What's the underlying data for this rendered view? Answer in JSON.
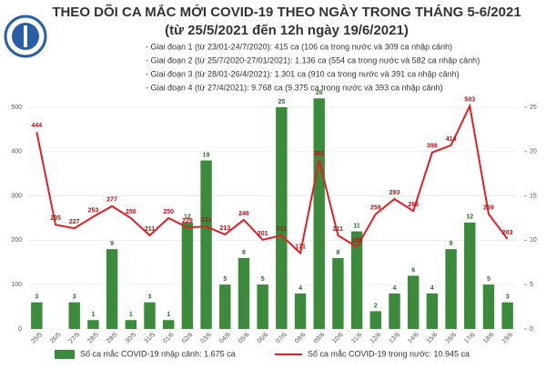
{
  "chart_data": {
    "type": "bar_line",
    "title": "THEO DÕI CA MẮC MỚI COVID-19 THEO NGÀY TRONG THÁNG 5-6/2021",
    "subtitle": "(từ 25/5/2021 đến 12h ngày 19/6/2021)",
    "notes": [
      "- Giai đoạn 1 (từ 23/01-24/7/2020): 415 ca (106 ca trong nước và 309 ca nhập cảnh)",
      "- Giai đoạn 2 (từ 25/7/2020-27/01/2021): 1.136 ca (554 ca trong nước và 582 ca nhập cảnh)",
      "- Giai đoạn 3 (từ 28/01-26/4/2021): 1.301 ca (910 ca trong nước và 391 ca nhập cảnh)",
      "- Giai đoạn 4 (từ 27/4/2021): 9.768 ca (9.375 ca trong nước và 393 ca nhập cảnh)"
    ],
    "categories": [
      "25/5",
      "26/5",
      "27/5",
      "28/5",
      "29/5",
      "30/5",
      "31/5",
      "01/6",
      "02/6",
      "03/6",
      "04/6",
      "05/6",
      "06/6",
      "07/6",
      "08/6",
      "09/6",
      "10/6",
      "11/6",
      "12/6",
      "13/6",
      "14/6",
      "15/6",
      "16/6",
      "17/6",
      "18/6",
      "19/6"
    ],
    "series": [
      {
        "name": "Số ca mắc COVID-19 nhập cảnh: 1.675 ca",
        "color": "#3c8a3c",
        "kind": "bar",
        "axis": "y2",
        "values": [
          3,
          null,
          3,
          1,
          9,
          1,
          3,
          1,
          12,
          19,
          5,
          8,
          5,
          25,
          4,
          26,
          8,
          11,
          2,
          4,
          6,
          4,
          9,
          12,
          5,
          3
        ]
      },
      {
        "name": "Số ca mắc COVID-19 trong nước: 10.945 ca",
        "color": "#e31e24",
        "kind": "line",
        "values": [
          444,
          235,
          227,
          253,
          277,
          250,
          211,
          250,
          229,
          231,
          213,
          246,
          201,
          211,
          171,
          381,
          211,
          185,
          259,
          293,
          266,
          398,
          414,
          503,
          259,
          203
        ]
      }
    ],
    "ylim": [
      0,
      500
    ],
    "yticks": [
      0,
      100,
      200,
      300,
      400,
      500
    ],
    "y2lim": [
      0,
      25
    ],
    "y2ticks": [
      0,
      5,
      10,
      15,
      20,
      25
    ],
    "grid": true
  }
}
